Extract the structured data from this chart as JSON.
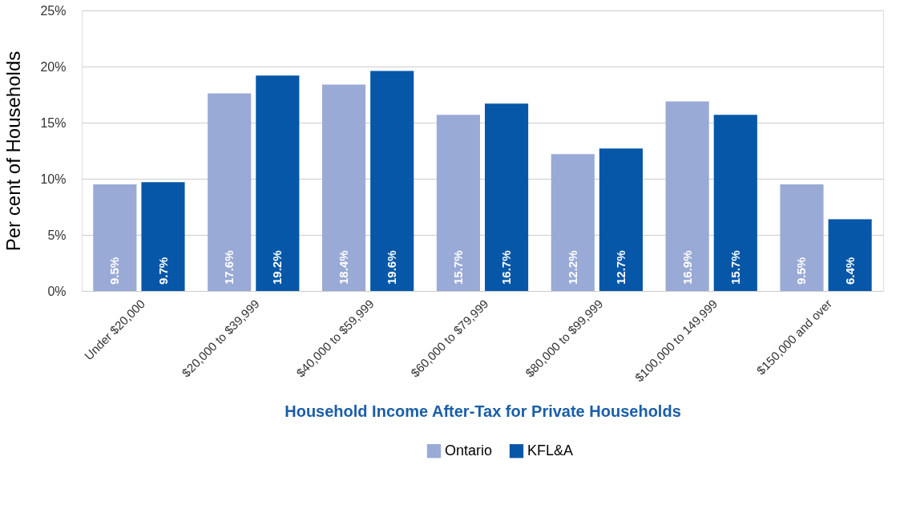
{
  "chart_data": {
    "type": "bar",
    "xlabel": "Household Income After-Tax for Private Households",
    "ylabel": "Per cent of Households",
    "categories": [
      "Under $20,000",
      "$20,000 to $39,999",
      "$40,000 to $59,999",
      "$60,000 to $79,999",
      "$80,000 to $99,999",
      "$100,000 to 149,999",
      "$150,000 and over"
    ],
    "series": [
      {
        "name": "Ontario",
        "color": "#9aaad6",
        "values": [
          9.5,
          17.6,
          18.4,
          15.7,
          12.2,
          16.9,
          9.5
        ],
        "value_labels": [
          "9.5%",
          "17.6%",
          "18.4%",
          "15.7%",
          "12.2%",
          "16.9%",
          "9.5%"
        ]
      },
      {
        "name": "KFL&A",
        "color": "#0757a8",
        "values": [
          9.7,
          19.2,
          19.6,
          16.7,
          12.7,
          15.7,
          6.4
        ],
        "value_labels": [
          "9.7%",
          "19.2%",
          "19.6%",
          "16.7%",
          "12.7%",
          "15.7%",
          "6.4%"
        ]
      }
    ],
    "ylim": [
      0,
      25
    ],
    "yticks": [
      {
        "value": 0,
        "label": "0%"
      },
      {
        "value": 5,
        "label": "5%"
      },
      {
        "value": 10,
        "label": "10%"
      },
      {
        "value": 15,
        "label": "15%"
      },
      {
        "value": 20,
        "label": "20%"
      },
      {
        "value": 25,
        "label": "25%"
      }
    ],
    "grid": "y",
    "legend": "bottom"
  }
}
